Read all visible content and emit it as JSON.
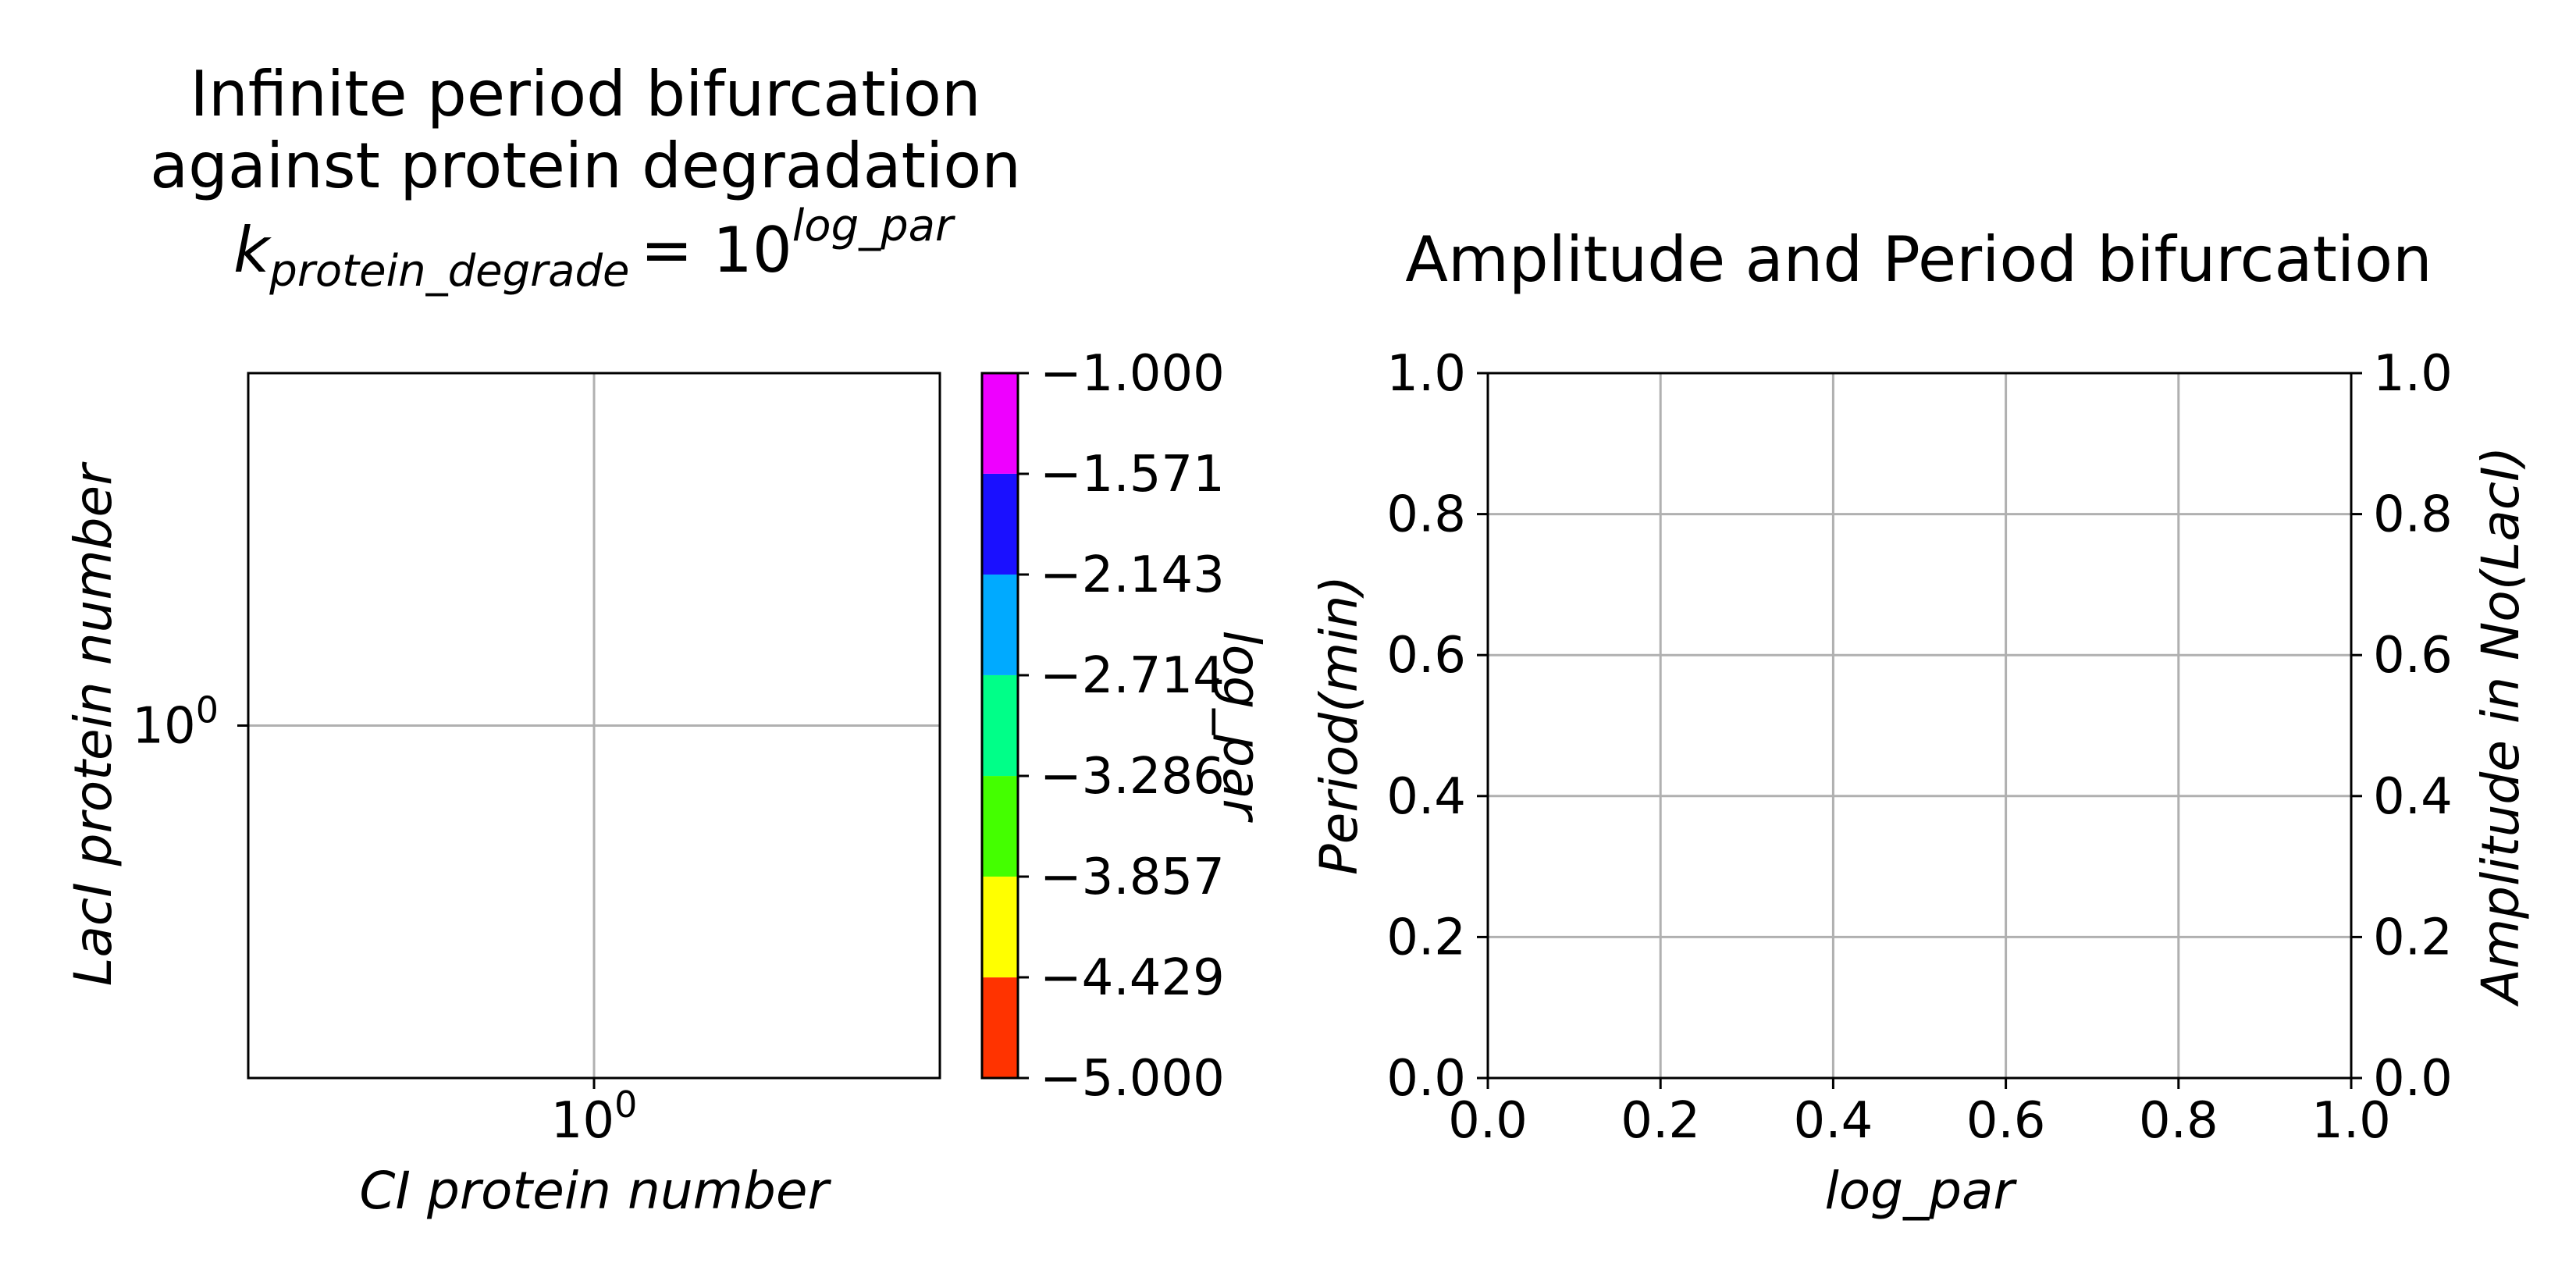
{
  "chart_data": [
    {
      "type": "scatter",
      "title_line1": "Infinite period bifurcation",
      "title_line2": "against protein degradation",
      "title_formula": {
        "k": "k",
        "k_sub": "protein_degrade",
        "equals": "= 10",
        "sup": "log_par"
      },
      "xlabel": "CI protein number",
      "ylabel": "LacI protein number",
      "xscale": "log",
      "yscale": "log",
      "xticks": [
        {
          "base": "10",
          "exp": "0"
        }
      ],
      "yticks": [
        {
          "base": "10",
          "exp": "0"
        }
      ],
      "grid": true,
      "series": [],
      "colorbar": {
        "label": "log_par",
        "range": [
          -5.0,
          -1.0
        ],
        "ticks": [
          "−1.000",
          "−1.571",
          "−2.143",
          "−2.714",
          "−3.286",
          "−3.857",
          "−4.429",
          "−5.000"
        ],
        "bands": [
          {
            "from": -5.0,
            "to": -4.429,
            "color": "#ff3300"
          },
          {
            "from": -4.429,
            "to": -3.857,
            "color": "#ffff00"
          },
          {
            "from": -3.857,
            "to": -3.286,
            "color": "#44ff00"
          },
          {
            "from": -3.286,
            "to": -2.714,
            "color": "#00ff88"
          },
          {
            "from": -2.714,
            "to": -2.143,
            "color": "#00aaff"
          },
          {
            "from": -2.143,
            "to": -1.571,
            "color": "#1a10ff"
          },
          {
            "from": -1.571,
            "to": -1.0,
            "color": "#ee00ff"
          }
        ]
      }
    },
    {
      "type": "line",
      "title": "Amplitude and Period bifurcation",
      "xlabel": "log_par",
      "ylabel_left": "Period(min)",
      "ylabel_right": "Amplitude in No(LacI)",
      "ylabel_left_color": "#0000ff",
      "ylabel_right_color": "#ff0000",
      "xlim": [
        0.0,
        1.0
      ],
      "ylim_left": [
        0.0,
        1.0
      ],
      "ylim_right": [
        0.0,
        1.0
      ],
      "xticks": [
        "0.0",
        "0.2",
        "0.4",
        "0.6",
        "0.8",
        "1.0"
      ],
      "yticks_left": [
        "0.0",
        "0.2",
        "0.4",
        "0.6",
        "0.8",
        "1.0"
      ],
      "yticks_right": [
        "0.0",
        "0.2",
        "0.4",
        "0.6",
        "0.8",
        "1.0"
      ],
      "grid": true,
      "series": []
    }
  ]
}
